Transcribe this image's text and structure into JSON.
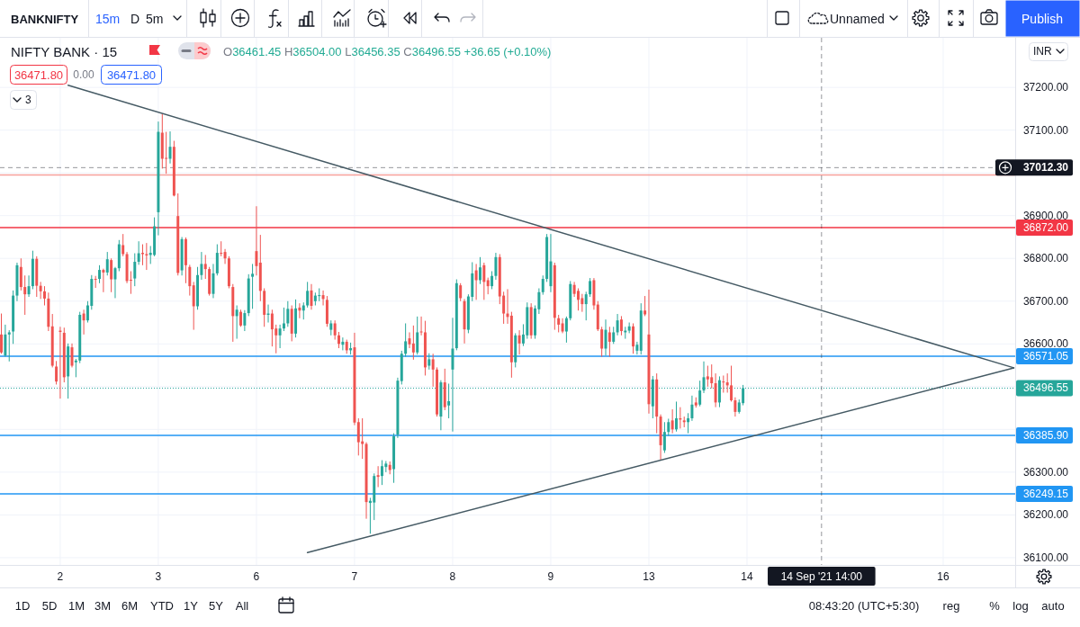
{
  "chart_data": {
    "type": "candlestick",
    "title": "NIFTY BANK · 15",
    "categories": [
      null,
      null,
      null,
      null,
      null,
      null,
      null,
      null,
      null,
      null,
      null,
      null,
      null,
      null,
      null,
      "2",
      null,
      null,
      null,
      null,
      null,
      null,
      null,
      null,
      null,
      null,
      null,
      null,
      null,
      null,
      null,
      null,
      null,
      null,
      null,
      null,
      null,
      null,
      null,
      null,
      "3",
      null,
      null,
      null,
      null,
      null,
      null,
      null,
      null,
      null,
      null,
      null,
      null,
      null,
      null,
      null,
      null,
      null,
      null,
      null,
      null,
      null,
      null,
      null,
      null,
      "6",
      null,
      null,
      null,
      null,
      null,
      null,
      null,
      null,
      null,
      null,
      null,
      null,
      null,
      null,
      null,
      null,
      null,
      null,
      null,
      null,
      null,
      null,
      null,
      null,
      "7",
      null,
      null,
      null,
      null,
      null,
      null,
      null,
      null,
      null,
      null,
      null,
      null,
      null,
      null,
      null,
      null,
      null,
      null,
      null,
      null,
      null,
      null,
      null,
      null,
      "8",
      null,
      null,
      null,
      null,
      null,
      null,
      null,
      null,
      null,
      null,
      null,
      null,
      null,
      null,
      null,
      null,
      null,
      null,
      null,
      null,
      null,
      null,
      null,
      null,
      "9",
      null,
      null,
      null,
      null,
      null,
      null,
      null,
      null,
      null,
      null,
      null,
      null,
      null,
      null,
      null,
      null,
      null,
      null,
      null,
      null,
      null,
      null,
      null,
      null,
      "13",
      null,
      null,
      null,
      null,
      null,
      null,
      null,
      null,
      null,
      null,
      null,
      null,
      null,
      null,
      null,
      null,
      null,
      null,
      null,
      null,
      null,
      null,
      null,
      null,
      "14",
      null,
      null,
      null,
      null,
      null,
      null,
      null,
      null,
      null,
      null,
      null,
      null,
      null,
      null,
      null,
      null,
      null,
      null,
      "14 Sep '21 14:00",
      null,
      null,
      null,
      null,
      null,
      null,
      null,
      null,
      null,
      null,
      null,
      null,
      null,
      null,
      null,
      null,
      null,
      null,
      null,
      null,
      null,
      null,
      null,
      null,
      null,
      null,
      null,
      null,
      null,
      null,
      "16",
      null,
      null,
      null,
      null,
      null,
      null,
      null,
      null,
      null,
      null,
      null,
      null,
      null,
      null,
      null,
      null,
      null,
      null
    ],
    "ohlc": [
      [
        36622,
        36671,
        36577,
        36580
      ],
      [
        36573,
        36645,
        36570,
        36622
      ],
      [
        36622,
        36632,
        36559,
        36627
      ],
      [
        36629,
        36725,
        36600,
        36713
      ],
      [
        36713,
        36790,
        36700,
        36784
      ],
      [
        36780,
        36800,
        36725,
        36733
      ],
      [
        36733,
        36760,
        36668,
        36716
      ],
      [
        36716,
        36760,
        36710,
        36735
      ],
      [
        36735,
        36818,
        36728,
        36799
      ],
      [
        36799,
        36805,
        36710,
        36736
      ],
      [
        36736,
        36745,
        36705,
        36723
      ],
      [
        36723,
        36735,
        36690,
        36706
      ],
      [
        36706,
        36720,
        36630,
        36640
      ],
      [
        36641,
        36670,
        36545,
        36549
      ],
      [
        36547,
        36560,
        36505,
        36512
      ],
      [
        36631,
        36640,
        36472,
        36628
      ],
      [
        36626,
        36638,
        36510,
        36522
      ],
      [
        36524,
        36601,
        36472,
        36594
      ],
      [
        36592,
        36601,
        36545,
        36549
      ],
      [
        36557,
        36565,
        36522,
        36561
      ],
      [
        36561,
        36675,
        36555,
        36668
      ],
      [
        36671,
        36680,
        36622,
        36655
      ],
      [
        36655,
        36700,
        36650,
        36690
      ],
      [
        36689,
        36761,
        36680,
        36752
      ],
      [
        36752,
        36759,
        36731,
        36750
      ],
      [
        36752,
        36784,
        36742,
        36773
      ],
      [
        36773,
        36776,
        36721,
        36767
      ],
      [
        36767,
        36815,
        36760,
        36798
      ],
      [
        36796,
        36800,
        36721,
        36751
      ],
      [
        36751,
        36780,
        36707,
        36777
      ],
      [
        36777,
        36843,
        36770,
        36833
      ],
      [
        36831,
        36857,
        36805,
        36810
      ],
      [
        36810,
        36815,
        36742,
        36747
      ],
      [
        36750,
        36770,
        36717,
        36748
      ],
      [
        36753,
        36812,
        36735,
        36792
      ],
      [
        36792,
        36840,
        36785,
        36812
      ],
      [
        36813,
        36833,
        36784,
        36810
      ],
      [
        36810,
        36836,
        36773,
        36807
      ],
      [
        36808,
        36829,
        36787,
        36813
      ],
      [
        36808,
        36896,
        36805,
        36875
      ],
      [
        36908,
        37120,
        36854,
        37096
      ],
      [
        37094,
        37138,
        37010,
        37033
      ],
      [
        37035,
        37096,
        36998,
        37033
      ],
      [
        37033,
        37097,
        37022,
        37061
      ],
      [
        37061,
        37075,
        36945,
        36947
      ],
      [
        36899,
        36952,
        36760,
        36766
      ],
      [
        36772,
        36850,
        36760,
        36845
      ],
      [
        36845,
        36849,
        36742,
        36784
      ],
      [
        36780,
        36785,
        36713,
        36735
      ],
      [
        36737,
        36745,
        36633,
        36688
      ],
      [
        36688,
        36780,
        36680,
        36761
      ],
      [
        36761,
        36815,
        36750,
        36787
      ],
      [
        36787,
        36808,
        36752,
        36775
      ],
      [
        36775,
        36780,
        36713,
        36717
      ],
      [
        36717,
        36787,
        36707,
        36765
      ],
      [
        36765,
        36833,
        36760,
        36813
      ],
      [
        36813,
        36840,
        36805,
        36811
      ],
      [
        36815,
        36822,
        36787,
        36800
      ],
      [
        36800,
        36805,
        36730,
        36735
      ],
      [
        36733,
        36740,
        36605,
        36665
      ],
      [
        36665,
        36690,
        36612,
        36680
      ],
      [
        36675,
        36680,
        36640,
        36643
      ],
      [
        36643,
        36679,
        36630,
        36672
      ],
      [
        36672,
        36763,
        36665,
        36753
      ],
      [
        36757,
        36787,
        36682,
        36764
      ],
      [
        36817,
        36922,
        36760,
        36782
      ],
      [
        36790,
        36855,
        36700,
        36724
      ],
      [
        36724,
        36730,
        36640,
        36668
      ],
      [
        36668,
        36692,
        36650,
        36671
      ],
      [
        36671,
        36680,
        36594,
        36634
      ],
      [
        36636,
        36645,
        36578,
        36620
      ],
      [
        36620,
        36645,
        36590,
        36636
      ],
      [
        36636,
        36685,
        36630,
        36648
      ],
      [
        36648,
        36700,
        36640,
        36682
      ],
      [
        36682,
        36690,
        36606,
        36624
      ],
      [
        36624,
        36704,
        36615,
        36683
      ],
      [
        36685,
        36695,
        36660,
        36678
      ],
      [
        36678,
        36697,
        36657,
        36690
      ],
      [
        36690,
        36745,
        36685,
        36724
      ],
      [
        36725,
        36740,
        36680,
        36689
      ],
      [
        36700,
        36720,
        36690,
        36713
      ],
      [
        36712,
        36730,
        36700,
        36714
      ],
      [
        36714,
        36725,
        36690,
        36705
      ],
      [
        36703,
        36712,
        36640,
        36647
      ],
      [
        36633,
        36655,
        36620,
        36648
      ],
      [
        36648,
        36655,
        36610,
        36620
      ],
      [
        36620,
        36628,
        36590,
        36600
      ],
      [
        36598,
        36615,
        36585,
        36605
      ],
      [
        36605,
        36610,
        36577,
        36585
      ],
      [
        36585,
        36603,
        36575,
        36590
      ],
      [
        36592,
        36626,
        36410,
        36416
      ],
      [
        36417,
        36426,
        36339,
        36370
      ],
      [
        36372,
        36426,
        36331,
        36366
      ],
      [
        36366,
        36370,
        36191,
        36230
      ],
      [
        36228,
        36240,
        36156,
        36233
      ],
      [
        36229,
        36297,
        36188,
        36291
      ],
      [
        36293,
        36314,
        36265,
        36289
      ],
      [
        36291,
        36328,
        36270,
        36314
      ],
      [
        36312,
        36326,
        36300,
        36320
      ],
      [
        36317,
        36325,
        36295,
        36305
      ],
      [
        36307,
        36391,
        36275,
        36384
      ],
      [
        36388,
        36521,
        36380,
        36514
      ],
      [
        36513,
        36584,
        36505,
        36577
      ],
      [
        36577,
        36648,
        36570,
        36606
      ],
      [
        36613,
        36627,
        36590,
        36599
      ],
      [
        36601,
        36643,
        36563,
        36580
      ],
      [
        36580,
        36664,
        36575,
        36627
      ],
      [
        36629,
        36664,
        36620,
        36627
      ],
      [
        36627,
        36654,
        36526,
        36545
      ],
      [
        36549,
        36578,
        36540,
        36564
      ],
      [
        36564,
        36577,
        36500,
        36540
      ],
      [
        36540,
        36545,
        36430,
        36435
      ],
      [
        36430,
        36515,
        36398,
        36510
      ],
      [
        36510,
        36542,
        36445,
        36452
      ],
      [
        36456,
        36507,
        36426,
        36466
      ],
      [
        36540,
        36661,
        36395,
        36589
      ],
      [
        36590,
        36751,
        36585,
        36742
      ],
      [
        36737,
        36742,
        36700,
        36707
      ],
      [
        36700,
        36705,
        36601,
        36634
      ],
      [
        36633,
        36716,
        36625,
        36711
      ],
      [
        36710,
        36791,
        36700,
        36765
      ],
      [
        36772,
        36787,
        36703,
        36749
      ],
      [
        36749,
        36803,
        36740,
        36779
      ],
      [
        36784,
        36790,
        36703,
        36745
      ],
      [
        36749,
        36755,
        36716,
        36735
      ],
      [
        36735,
        36770,
        36728,
        36759
      ],
      [
        36759,
        36813,
        36750,
        36803
      ],
      [
        36803,
        36810,
        36693,
        36711
      ],
      [
        36713,
        36722,
        36647,
        36671
      ],
      [
        36671,
        36728,
        36647,
        36663
      ],
      [
        36666,
        36675,
        36521,
        36557
      ],
      [
        36557,
        36625,
        36545,
        36620
      ],
      [
        36620,
        36632,
        36575,
        36601
      ],
      [
        36601,
        36646,
        36595,
        36622
      ],
      [
        36620,
        36697,
        36612,
        36686
      ],
      [
        36686,
        36695,
        36612,
        36620
      ],
      [
        36620,
        36690,
        36612,
        36683
      ],
      [
        36681,
        36730,
        36670,
        36721
      ],
      [
        36721,
        36760,
        36715,
        36752
      ],
      [
        36752,
        36857,
        36745,
        36850
      ],
      [
        36735,
        36857,
        36721,
        36793
      ],
      [
        36784,
        36790,
        36633,
        36661
      ],
      [
        36660,
        36668,
        36627,
        36645
      ],
      [
        36648,
        36660,
        36625,
        36629
      ],
      [
        36629,
        36664,
        36603,
        36660
      ],
      [
        36660,
        36747,
        36655,
        36740
      ],
      [
        36738,
        36745,
        36710,
        36717
      ],
      [
        36724,
        36730,
        36678,
        36703
      ],
      [
        36707,
        36717,
        36675,
        36693
      ],
      [
        36693,
        36722,
        36655,
        36716
      ],
      [
        36716,
        36754,
        36710,
        36747
      ],
      [
        36749,
        36754,
        36680,
        36690
      ],
      [
        36692,
        36700,
        36630,
        36634
      ],
      [
        36634,
        36640,
        36570,
        36589
      ],
      [
        36589,
        36657,
        36573,
        36633
      ],
      [
        36627,
        36640,
        36570,
        36605
      ],
      [
        36605,
        36640,
        36600,
        36627
      ],
      [
        36627,
        36670,
        36620,
        36655
      ],
      [
        36657,
        36665,
        36620,
        36630
      ],
      [
        36627,
        36640,
        36612,
        36631
      ],
      [
        36631,
        36650,
        36625,
        36641
      ],
      [
        36641,
        36648,
        36577,
        36594
      ],
      [
        36584,
        36605,
        36575,
        36598
      ],
      [
        36584,
        36695,
        36575,
        36678
      ],
      [
        36678,
        36712,
        36665,
        36669
      ],
      [
        36622,
        36727,
        36437,
        36459
      ],
      [
        36454,
        36525,
        36426,
        36517
      ],
      [
        36517,
        36531,
        36391,
        36430
      ],
      [
        36430,
        36435,
        36328,
        36363
      ],
      [
        36351,
        36417,
        36345,
        36394
      ],
      [
        36394,
        36425,
        36385,
        36417
      ],
      [
        36421,
        36447,
        36391,
        36400
      ],
      [
        36400,
        36465,
        36395,
        36426
      ],
      [
        36426,
        36452,
        36402,
        36423
      ],
      [
        36421,
        36430,
        36405,
        36417
      ],
      [
        36417,
        36438,
        36391,
        36426
      ],
      [
        36426,
        36479,
        36420,
        36458
      ],
      [
        36463,
        36475,
        36451,
        36456
      ],
      [
        36458,
        36514,
        36454,
        36491
      ],
      [
        36491,
        36559,
        36485,
        36522
      ],
      [
        36524,
        36549,
        36500,
        36517
      ],
      [
        36522,
        36552,
        36496,
        36508
      ],
      [
        36508,
        36531,
        36452,
        36463
      ],
      [
        36463,
        36524,
        36452,
        36515
      ],
      [
        36512,
        36526,
        36486,
        36510
      ],
      [
        36510,
        36531,
        36486,
        36503
      ],
      [
        36503,
        36549,
        36465,
        36468
      ],
      [
        36468,
        36475,
        36430,
        36441
      ],
      [
        36441,
        36470,
        36437,
        36463
      ],
      [
        36461.45,
        36504,
        36456.35,
        36496.55
      ],
      null,
      null,
      null,
      null,
      null,
      null,
      null,
      null,
      null,
      null,
      null,
      null,
      null,
      null,
      null,
      null,
      null,
      null,
      null,
      null,
      null,
      null,
      null,
      null,
      null,
      null,
      null,
      null,
      null,
      null,
      null,
      null,
      null,
      null,
      null,
      null,
      null,
      null,
      null,
      null,
      null,
      null,
      null,
      null,
      null,
      null,
      null,
      null,
      null,
      null,
      null,
      null,
      null,
      null,
      null,
      null,
      null,
      null,
      null,
      null,
      null,
      null,
      null,
      null,
      null,
      null,
      null,
      null,
      null
    ],
    "colors": [
      "#ef5350",
      "#26a69a",
      "#26a69a",
      "#26a69a",
      "#26a69a",
      "#ef5350",
      "#ef5350",
      "#26a69a",
      "#26a69a",
      "#ef5350",
      "#ef5350",
      "#ef5350",
      "#ef5350",
      "#ef5350",
      "#ef5350",
      "#ef5350",
      "#ef5350",
      "#26a69a",
      "#ef5350",
      "#26a69a",
      "#26a69a",
      "#ef5350",
      "#26a69a",
      "#26a69a",
      "#ef5350",
      "#26a69a",
      "#ef5350",
      "#26a69a",
      "#ef5350",
      "#26a69a",
      "#26a69a",
      "#ef5350",
      "#ef5350",
      "#ef5350",
      "#26a69a",
      "#26a69a",
      "#ef5350",
      "#ef5350",
      "#26a69a",
      "#26a69a",
      "#26a69a",
      "#ef5350",
      "#ef5350",
      "#26a69a",
      "#ef5350",
      "#ef5350",
      "#26a69a",
      "#ef5350",
      "#ef5350",
      "#ef5350",
      "#26a69a",
      "#26a69a",
      "#ef5350",
      "#ef5350",
      "#26a69a",
      "#26a69a",
      "#ef5350",
      "#ef5350",
      "#ef5350",
      "#ef5350",
      "#26a69a",
      "#ef5350",
      "#26a69a",
      "#26a69a",
      "#26a69a",
      "#ef5350",
      "#ef5350",
      "#ef5350",
      "#26a69a",
      "#ef5350",
      "#ef5350",
      "#26a69a",
      "#26a69a",
      "#26a69a",
      "#ef5350",
      "#26a69a",
      "#ef5350",
      "#26a69a",
      "#26a69a",
      "#ef5350",
      "#26a69a",
      "#26a69a",
      "#ef5350",
      "#ef5350",
      "#26a69a",
      "#ef5350",
      "#ef5350",
      "#26a69a",
      "#ef5350",
      "#26a69a",
      "#ef5350",
      "#ef5350",
      "#ef5350",
      "#ef5350",
      "#26a69a",
      "#26a69a",
      "#ef5350",
      "#26a69a",
      "#26a69a",
      "#ef5350",
      "#26a69a",
      "#26a69a",
      "#26a69a",
      "#26a69a",
      "#ef5350",
      "#ef5350",
      "#26a69a",
      "#ef5350",
      "#ef5350",
      "#26a69a",
      "#ef5350",
      "#ef5350",
      "#26a69a",
      "#ef5350",
      "#26a69a",
      "#26a69a",
      "#26a69a",
      "#ef5350",
      "#ef5350",
      "#26a69a",
      "#26a69a",
      "#ef5350",
      "#26a69a",
      "#ef5350",
      "#ef5350",
      "#26a69a",
      "#26a69a",
      "#ef5350",
      "#ef5350",
      "#ef5350",
      "#ef5350",
      "#26a69a",
      "#ef5350",
      "#26a69a",
      "#26a69a",
      "#ef5350",
      "#26a69a",
      "#26a69a",
      "#26a69a",
      "#26a69a",
      "#26a69a",
      "#ef5350",
      "#ef5350",
      "#ef5350",
      "#26a69a",
      "#26a69a",
      "#ef5350",
      "#ef5350",
      "#ef5350",
      "#26a69a",
      "#26a69a",
      "#ef5350",
      "#ef5350",
      "#ef5350",
      "#26a69a",
      "#ef5350",
      "#26a69a",
      "#26a69a",
      "#ef5350",
      "#26a69a",
      "#26a69a",
      "#ef5350",
      "#26a69a",
      "#26a69a",
      "#ef5350",
      "#ef5350",
      "#26a69a",
      "#ef5350",
      "#ef5350",
      "#26a69a",
      "#26a69a",
      "#ef5350",
      "#26a69a",
      "#ef5350",
      "#ef5350",
      "#26a69a",
      "#26a69a",
      "#ef5350",
      "#26a69a",
      "#26a69a",
      "#ef5350",
      "#ef5350",
      "#ef5350",
      "#26a69a",
      "#ef5350",
      "#ef5350",
      "#ef5350",
      "#ef5350",
      "#26a69a",
      "#26a69a",
      null,
      null,
      null,
      null,
      null,
      null,
      null,
      null,
      null,
      null,
      null,
      null,
      null,
      null,
      null,
      null,
      null,
      null,
      null,
      null,
      null,
      null,
      null,
      null,
      null,
      null,
      null,
      null,
      null,
      null,
      null,
      null,
      null,
      null,
      null,
      null,
      null,
      null,
      null,
      null,
      null,
      null,
      null,
      null,
      null,
      null,
      null,
      null,
      null,
      null,
      null,
      null,
      null,
      null,
      null,
      null,
      null,
      null,
      null,
      null,
      null,
      null,
      null,
      null,
      null,
      null,
      null,
      null,
      null
    ],
    "series": [
      {
        "type": "line",
        "color": "#455a64",
        "values": [
          null,
          null,
          null,
          null,
          null,
          null,
          null,
          null,
          null,
          null,
          null,
          null,
          null,
          null,
          null,
          null,
          null,
          37205,
          null,
          null,
          null,
          null,
          null,
          null,
          null,
          null,
          null,
          null,
          null,
          null,
          null,
          null,
          null,
          null,
          null,
          null,
          null,
          null,
          null,
          null,
          null,
          null,
          null,
          null,
          null,
          null,
          null,
          null,
          null,
          null,
          null,
          null,
          null,
          null,
          null,
          null,
          null,
          null,
          null,
          null,
          null,
          null,
          null,
          null,
          null,
          null,
          null,
          null,
          null,
          null,
          null,
          null,
          null,
          null,
          null,
          null,
          null,
          null,
          null,
          null,
          null,
          null,
          null,
          null,
          null,
          null,
          null,
          null,
          null,
          null,
          null,
          null,
          null,
          null,
          null,
          null,
          null,
          null,
          null,
          null,
          null,
          null,
          null,
          null,
          null,
          null,
          null,
          null,
          null,
          null,
          null,
          null,
          null,
          null,
          null,
          null,
          null,
          null,
          null,
          null,
          null,
          null,
          null,
          null,
          null,
          null,
          null,
          null,
          null,
          null,
          null,
          null,
          null,
          null,
          null,
          null,
          null,
          null,
          null,
          null,
          null,
          null,
          null,
          null,
          null,
          null,
          null,
          null,
          null,
          null,
          null,
          null,
          null,
          null,
          null,
          null,
          null,
          null,
          null,
          null,
          null,
          null,
          null,
          null,
          null,
          null,
          null,
          null,
          null,
          null,
          null,
          null,
          null,
          null,
          null,
          null,
          null,
          null,
          null,
          null,
          null,
          null,
          null,
          null,
          null,
          null,
          null,
          null,
          null,
          null,
          null,
          null,
          null,
          null,
          null,
          null,
          null,
          null,
          null,
          null,
          null,
          null,
          null,
          null,
          null,
          null,
          null,
          null,
          null,
          null,
          null,
          null,
          null,
          null,
          null,
          null,
          null,
          null,
          null,
          null,
          null,
          null,
          null,
          null,
          null,
          null,
          null,
          null,
          null,
          null,
          null,
          null,
          null,
          null,
          null,
          null,
          null,
          null,
          null,
          null,
          null,
          null,
          null,
          null,
          null,
          null,
          null,
          null,
          null,
          null,
          null,
          null,
          null,
          null,
          null,
          null,
          null,
          null,
          36544
        ]
      },
      {
        "type": "line",
        "color": "#455a64",
        "values": [
          null,
          null,
          null,
          null,
          null,
          null,
          null,
          null,
          null,
          null,
          null,
          null,
          null,
          null,
          null,
          null,
          null,
          null,
          null,
          null,
          null,
          null,
          null,
          null,
          null,
          null,
          null,
          null,
          null,
          null,
          null,
          null,
          null,
          null,
          null,
          null,
          null,
          null,
          null,
          null,
          null,
          null,
          null,
          null,
          null,
          null,
          null,
          null,
          null,
          null,
          null,
          null,
          null,
          null,
          null,
          null,
          null,
          null,
          null,
          null,
          null,
          null,
          null,
          null,
          null,
          null,
          null,
          null,
          null,
          null,
          null,
          null,
          null,
          null,
          null,
          null,
          null,
          null,
          36112,
          null,
          null,
          null,
          null,
          null,
          null,
          null,
          null,
          null,
          null,
          null,
          null,
          null,
          null,
          null,
          null,
          null,
          null,
          null,
          null,
          null,
          null,
          null,
          null,
          null,
          null,
          null,
          null,
          null,
          null,
          null,
          null,
          null,
          null,
          null,
          null,
          null,
          null,
          null,
          null,
          null,
          null,
          null,
          null,
          null,
          null,
          null,
          null,
          null,
          null,
          null,
          null,
          null,
          null,
          null,
          null,
          null,
          null,
          null,
          null,
          null,
          null,
          null,
          null,
          null,
          null,
          null,
          null,
          null,
          null,
          null,
          null,
          null,
          null,
          null,
          null,
          null,
          null,
          null,
          null,
          null,
          null,
          null,
          null,
          null,
          null,
          null,
          null,
          null,
          null,
          null,
          null,
          null,
          null,
          null,
          null,
          null,
          null,
          null,
          null,
          null,
          null,
          null,
          null,
          null,
          null,
          null,
          null,
          null,
          null,
          null,
          null,
          null,
          null,
          null,
          null,
          null,
          null,
          null,
          null,
          null,
          null,
          null,
          null,
          null,
          null,
          null,
          null,
          null,
          null,
          null,
          null,
          null,
          null,
          null,
          null,
          null,
          null,
          null,
          null,
          null,
          null,
          null,
          null,
          null,
          null,
          null,
          null,
          null,
          null,
          null,
          null,
          null,
          null,
          null,
          null,
          null,
          null,
          null,
          null,
          null,
          null,
          null,
          null,
          null,
          null,
          null,
          null,
          null,
          null,
          null,
          null,
          null,
          null,
          null,
          null,
          null,
          null,
          null,
          36544
        ]
      }
    ],
    "ylim": [
      36083,
      37316
    ],
    "yticks": [
      {
        "value": 36100,
        "label": "36100.00"
      },
      {
        "value": 36200,
        "label": "36200.00"
      },
      {
        "value": 36300,
        "label": "36300.00"
      },
      {
        "value": 36400,
        "label": null
      },
      {
        "value": 36500,
        "label": null
      },
      {
        "value": 36600,
        "label": "36600.00"
      },
      {
        "value": 36700,
        "label": "36700.00"
      },
      {
        "value": 36800,
        "label": "36800.00"
      },
      {
        "value": 36900,
        "label": "36900.00"
      },
      {
        "value": 37000,
        "label": null
      },
      {
        "value": 37100,
        "label": "37100.00"
      },
      {
        "value": 37200,
        "label": "37200.00"
      }
    ],
    "grid": true,
    "ref_lines": [
      {
        "axis": "y",
        "value": 36995,
        "color": "#f7a19c"
      },
      {
        "axis": "y",
        "value": 36872,
        "label": "36872.00",
        "color": "#f23645"
      },
      {
        "axis": "y",
        "value": 36571.05,
        "label": "36571.05",
        "color": "#2196f3"
      },
      {
        "axis": "y",
        "value": 36385.9,
        "label": "36385.90",
        "color": "#2196f3"
      },
      {
        "axis": "y",
        "value": 36249.15,
        "label": "36249.15",
        "color": "#2196f3"
      },
      {
        "axis": "y",
        "value": 36496.55,
        "label": "36496.55",
        "color": "#26a69a",
        "line_style": "dotted"
      },
      {
        "axis": "y",
        "value": 37012.3,
        "label": "37012.30",
        "color": "#131722",
        "line_style": "dashed"
      },
      {
        "axis": "x",
        "value": "14 Sep '21 14:00",
        "color": "#131722",
        "line_style": "dashed"
      }
    ],
    "annotations": [
      "BANKNIFTY",
      "15m",
      "D",
      "5m",
      "Unnamed",
      "Publish",
      "O36461.45 H36504.00 L36456.35 C36496.55 +36.65 (+0.10%)",
      "36471.80",
      "0.00",
      "36471.80",
      "3",
      "INR",
      "1D",
      "5D",
      "1M",
      "3M",
      "6M",
      "YTD",
      "1Y",
      "5Y",
      "All",
      "08:43:20 (UTC+5:30)",
      "reg",
      "%",
      "log",
      "auto"
    ]
  }
}
